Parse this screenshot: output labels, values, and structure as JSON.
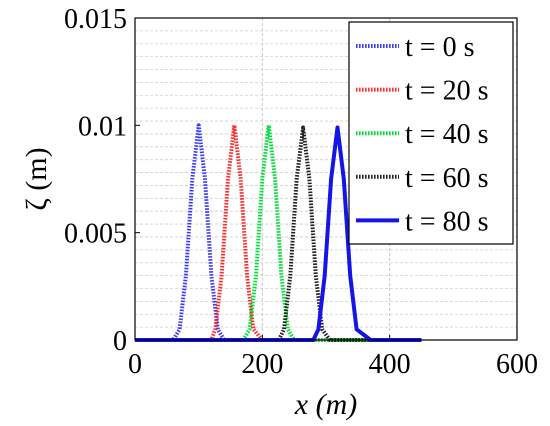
{
  "chart_data": {
    "type": "line",
    "title": "",
    "xlabel": "x (m)",
    "ylabel": "ζ (m)",
    "xlim": [
      0,
      600
    ],
    "ylim": [
      0,
      0.015
    ],
    "xticks": [
      0,
      200,
      400,
      600
    ],
    "yticks": [
      0,
      0.005,
      0.01,
      0.015
    ],
    "xtick_labels": [
      "0",
      "200",
      "400",
      "600"
    ],
    "ytick_labels": [
      "0",
      "0.005",
      "0.01",
      "0.015"
    ],
    "grid": true,
    "legend_position": "top-right",
    "series": [
      {
        "name": "t = 0 s",
        "color": "#3b3bff",
        "style": "dotted",
        "x": [
          0,
          60,
          70,
          80,
          90,
          100,
          110,
          120,
          130,
          140,
          150,
          160,
          450
        ],
        "y": [
          0,
          0,
          0.0005,
          0.003,
          0.0075,
          0.01,
          0.0075,
          0.003,
          0.0005,
          0,
          0,
          0,
          0
        ]
      },
      {
        "name": "t = 20 s",
        "color": "#ff2d2d",
        "style": "dotted",
        "x": [
          0,
          120,
          126,
          136,
          146,
          156,
          166,
          176,
          186,
          200,
          450
        ],
        "y": [
          0,
          0,
          0.0005,
          0.003,
          0.0075,
          0.01,
          0.0075,
          0.003,
          0.0005,
          0,
          0
        ]
      },
      {
        "name": "t = 40 s",
        "color": "#00e23a",
        "style": "dotted",
        "x": [
          0,
          170,
          180,
          190,
          200,
          210,
          220,
          230,
          240,
          250,
          450
        ],
        "y": [
          0,
          0,
          0.0005,
          0.003,
          0.0075,
          0.01,
          0.0075,
          0.003,
          0.0005,
          0,
          0
        ]
      },
      {
        "name": "t = 60 s",
        "color": "#222222",
        "style": "dotted",
        "x": [
          0,
          226,
          234,
          244,
          254,
          264,
          274,
          284,
          294,
          306,
          450
        ],
        "y": [
          0,
          0,
          0.0005,
          0.003,
          0.0075,
          0.0099,
          0.0075,
          0.003,
          0.0005,
          0,
          0
        ]
      },
      {
        "name": "t = 80 s",
        "color": "#1515e8",
        "style": "solid",
        "x": [
          0,
          280,
          288,
          298,
          308,
          318,
          328,
          338,
          348,
          370,
          450
        ],
        "y": [
          0,
          0,
          0.0005,
          0.003,
          0.0075,
          0.0099,
          0.0075,
          0.003,
          0.0005,
          0,
          0
        ]
      }
    ]
  }
}
